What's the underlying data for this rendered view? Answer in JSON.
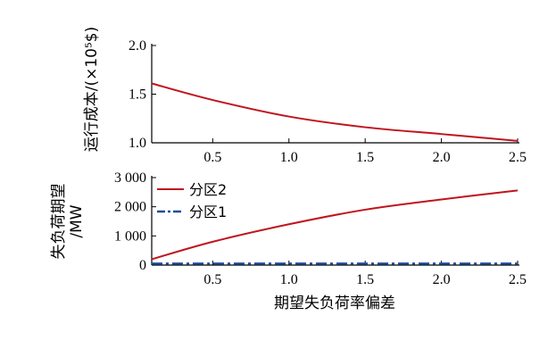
{
  "chart_data": [
    {
      "type": "line",
      "ylabel": "运行成本/(×10⁵$)",
      "xlim": [
        0.1,
        2.5
      ],
      "ylim": [
        1.0,
        2.0
      ],
      "x_ticks": [
        "0.5",
        "1.0",
        "1.5",
        "2.0",
        "2.5"
      ],
      "y_ticks": [
        "1.0",
        "1.5",
        "2.0"
      ],
      "series": [
        {
          "color": "#c0141e",
          "style": "solid",
          "x": [
            0.1,
            0.5,
            1.0,
            1.5,
            2.0,
            2.5
          ],
          "y": [
            1.61,
            1.44,
            1.27,
            1.16,
            1.09,
            1.02
          ]
        }
      ]
    },
    {
      "type": "line",
      "xlabel": "期望失负荷率偏差",
      "ylabel": "失负荷期望\n/MW",
      "xlim": [
        0.1,
        2.5
      ],
      "ylim": [
        0,
        3000
      ],
      "x_ticks": [
        "0.5",
        "1.0",
        "1.5",
        "2.0",
        "2.5"
      ],
      "y_ticks": [
        "0",
        "1 000",
        "2 000",
        "3 000"
      ],
      "legend_position": "top-left",
      "series": [
        {
          "name": "分区2",
          "color": "#c0141e",
          "style": "solid",
          "x": [
            0.1,
            0.5,
            1.0,
            1.5,
            2.0,
            2.5
          ],
          "y": [
            200,
            800,
            1400,
            1900,
            2250,
            2560
          ]
        },
        {
          "name": "分区1",
          "color": "#1f4e9b",
          "style": "dash-dot",
          "x": [
            0.1,
            0.5,
            1.0,
            1.5,
            2.0,
            2.5
          ],
          "y": [
            50,
            50,
            50,
            50,
            50,
            50
          ]
        }
      ]
    }
  ]
}
